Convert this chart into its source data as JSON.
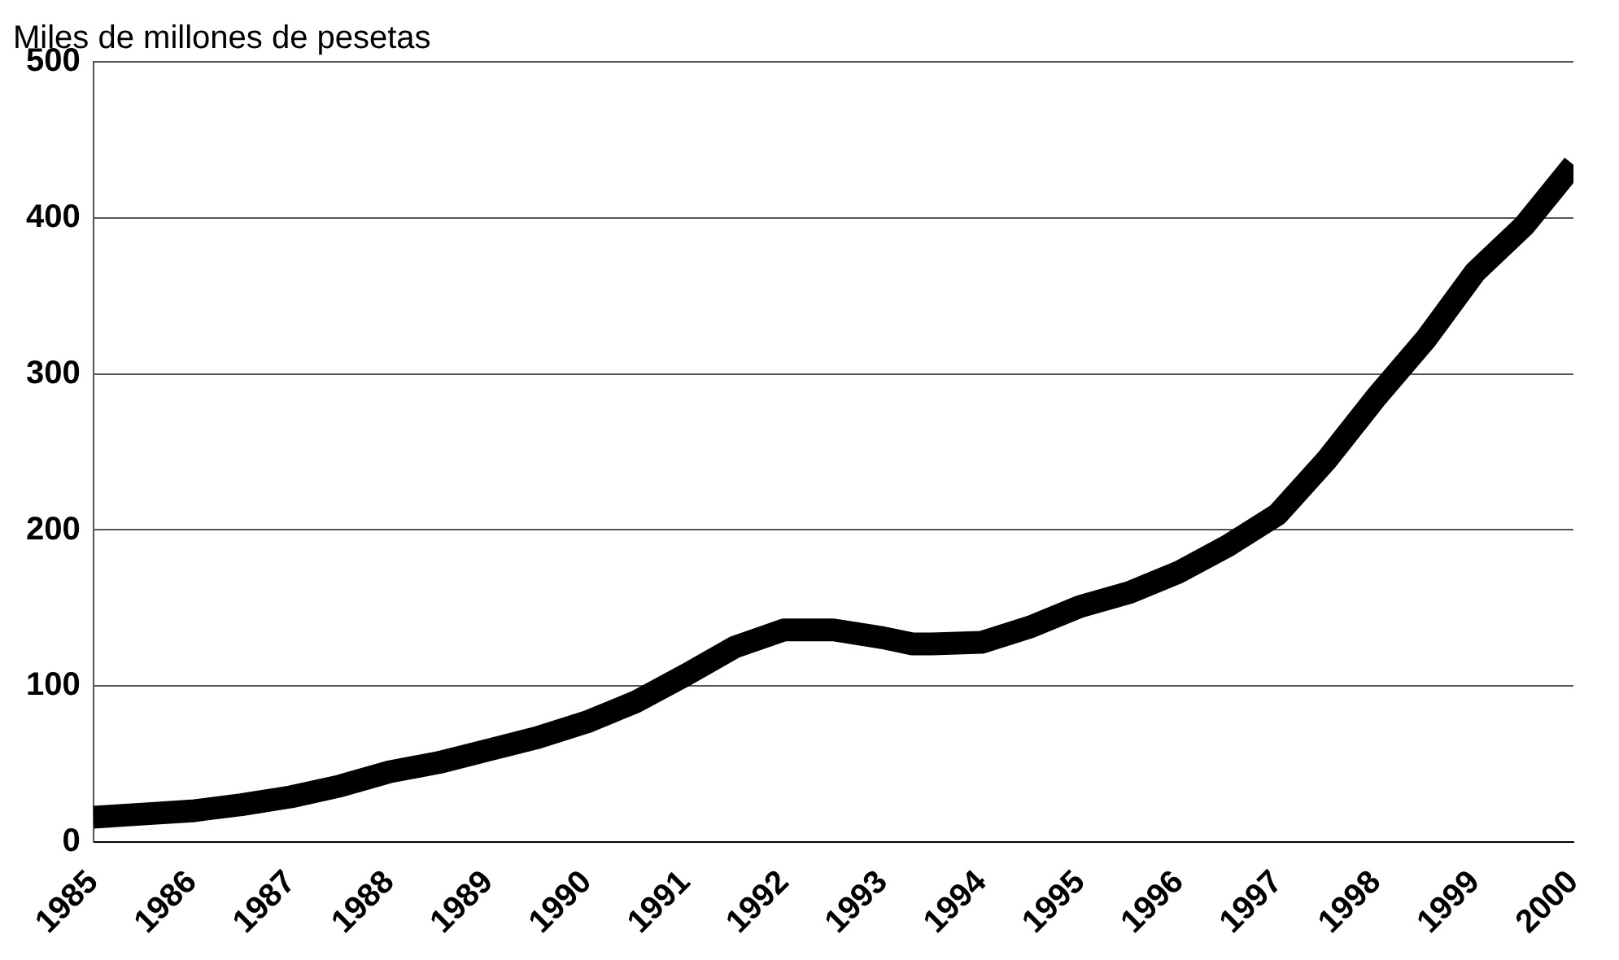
{
  "chart_data": {
    "type": "line",
    "ylabel": "Miles de millones de pesetas",
    "x": [
      1985,
      1985.5,
      1986,
      1986.5,
      1987,
      1987.5,
      1988,
      1988.5,
      1989,
      1989.5,
      1990,
      1990.5,
      1991,
      1991.5,
      1992,
      1992.5,
      1993,
      1993.3,
      1993.5,
      1994,
      1994.5,
      1995,
      1995.5,
      1996,
      1996.5,
      1997,
      1997.5,
      1998,
      1998.5,
      1999,
      1999.5,
      2000
    ],
    "series": [
      {
        "color": "#000000",
        "values": [
          16,
          18,
          20,
          24,
          29,
          36,
          45,
          51,
          59,
          67,
          77,
          90,
          107,
          125,
          136,
          136,
          131,
          127,
          127,
          128,
          138,
          151,
          160,
          173,
          190,
          210,
          245,
          285,
          322,
          365,
          395,
          434
        ]
      }
    ],
    "xlim": [
      1985,
      2000
    ],
    "xticks": [
      1985,
      1986,
      1987,
      1988,
      1989,
      1990,
      1991,
      1992,
      1993,
      1994,
      1995,
      1996,
      1997,
      1998,
      1999,
      2000
    ],
    "ylim": [
      0,
      500
    ],
    "yticks": [
      0,
      100,
      200,
      300,
      400,
      500
    ],
    "grid": "y",
    "marker": "none",
    "line_style": "solid"
  }
}
